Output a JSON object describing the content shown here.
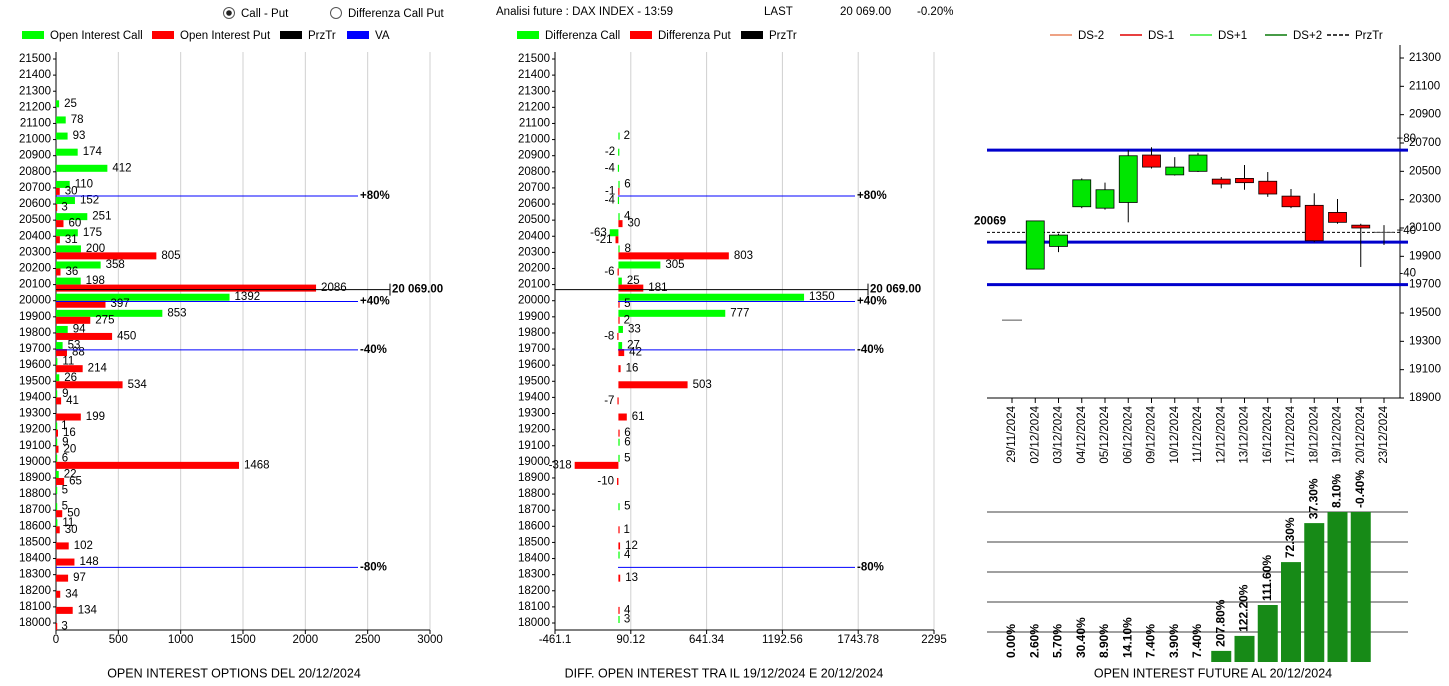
{
  "header": {
    "option_1": "Call - Put",
    "option_2": "Differenza Call Put",
    "info": "Analisi future : DAX INDEX - 13:59",
    "last_label": "LAST",
    "last": "20 069.00",
    "change": "-0.20%"
  },
  "chart_data": [
    {
      "type": "hbar",
      "title": "OPEN INTEREST OPTIONS DEL 20/12/2024",
      "y": [
        18000,
        18100,
        18200,
        18300,
        18400,
        18500,
        18600,
        18700,
        18800,
        18900,
        19000,
        19100,
        19200,
        19300,
        19400,
        19500,
        19600,
        19700,
        19800,
        19900,
        20000,
        20100,
        20200,
        20300,
        20400,
        20500,
        20600,
        20700,
        20800,
        20900,
        21000,
        21100,
        21200,
        21300,
        21400,
        21500
      ],
      "ylim": [
        18000,
        21500
      ],
      "yticks": [
        18000,
        18100,
        18200,
        18300,
        18400,
        18500,
        18600,
        18700,
        18800,
        18900,
        19000,
        19100,
        19200,
        19300,
        19400,
        19500,
        19600,
        19700,
        19800,
        19900,
        20000,
        20100,
        20200,
        20300,
        20400,
        20500,
        20600,
        20700,
        20800,
        20900,
        21000,
        21100,
        21200,
        21300,
        21400,
        21500
      ],
      "xlim": [
        0,
        3000
      ],
      "xticks": [
        0,
        500,
        1000,
        1500,
        2000,
        2500,
        3000
      ],
      "grid": true,
      "series": [
        {
          "name": "Open Interest Call",
          "color": "#00ff00",
          "values": [
            null,
            null,
            null,
            null,
            null,
            null,
            11,
            5,
            5,
            22,
            6,
            9,
            1,
            null,
            9,
            26,
            11,
            53,
            94,
            853,
            1392,
            198,
            358,
            200,
            175,
            251,
            152,
            110,
            412,
            174,
            93,
            78,
            25,
            null,
            null,
            null
          ]
        },
        {
          "name": "Open Interest Put",
          "color": "#ff0000",
          "values": [
            3,
            134,
            34,
            97,
            148,
            102,
            30,
            50,
            null,
            65,
            1468,
            20,
            16,
            199,
            41,
            534,
            214,
            88,
            450,
            275,
            397,
            2086,
            36,
            805,
            31,
            60,
            3,
            30,
            null,
            null,
            null,
            null,
            null,
            null,
            null,
            null
          ]
        }
      ],
      "przTr": {
        "name": "PrzTr",
        "color": "#000000",
        "value": 20069,
        "label": "20 069.00"
      },
      "va": {
        "name": "VA",
        "color": "#0000ff",
        "levels": [
          {
            "value": 20650,
            "label": "+80%"
          },
          {
            "value": 19995,
            "label": "+40%"
          },
          {
            "value": 19695,
            "label": "-40%"
          },
          {
            "value": 18345,
            "label": "-80%"
          }
        ]
      }
    },
    {
      "type": "hbar",
      "title": "DIFF. OPEN INTEREST TRA IL 19/12/2024 E 20/12/2024",
      "y": [
        18000,
        18100,
        18200,
        18300,
        18400,
        18500,
        18600,
        18700,
        18800,
        18900,
        19000,
        19100,
        19200,
        19300,
        19400,
        19500,
        19600,
        19700,
        19800,
        19900,
        20000,
        20100,
        20200,
        20300,
        20400,
        20500,
        20600,
        20700,
        20800,
        20900,
        21000,
        21100,
        21200,
        21300,
        21400,
        21500
      ],
      "ylim": [
        18000,
        21500
      ],
      "yticks": [
        18000,
        18100,
        18200,
        18300,
        18400,
        18500,
        18600,
        18700,
        18800,
        18900,
        19000,
        19100,
        19200,
        19300,
        19400,
        19500,
        19600,
        19700,
        19800,
        19900,
        20000,
        20100,
        20200,
        20300,
        20400,
        20500,
        20600,
        20700,
        20800,
        20900,
        21000,
        21100,
        21200,
        21300,
        21400,
        21500
      ],
      "xlim": [
        -461.1,
        2295
      ],
      "xticks": [
        -461.1,
        90.12,
        641.34,
        1192.56,
        1743.78,
        2295
      ],
      "grid": true,
      "series": [
        {
          "name": "Differenza Call",
          "color": "#00ff00",
          "values": [
            3,
            null,
            null,
            null,
            4,
            null,
            null,
            5,
            null,
            null,
            5,
            6,
            null,
            null,
            null,
            null,
            null,
            27,
            33,
            777,
            1350,
            25,
            305,
            8,
            -63,
            4,
            -4,
            6,
            -4,
            -2,
            2,
            null,
            null,
            null,
            null,
            null
          ]
        },
        {
          "name": "Differenza Put",
          "color": "#ff0000",
          "values": [
            null,
            4,
            null,
            13,
            null,
            12,
            1,
            null,
            null,
            -10,
            -318,
            null,
            6,
            61,
            -7,
            503,
            16,
            42,
            -8,
            2,
            5,
            181,
            -6,
            803,
            -21,
            30,
            null,
            -1,
            null,
            null,
            null,
            null,
            null,
            null,
            null,
            null
          ]
        }
      ],
      "przTr": {
        "name": "PrzTr",
        "color": "#000000",
        "value": 20069,
        "label": "20 069.00"
      },
      "va": {
        "color": "#0000ff",
        "levels": [
          {
            "value": 20650,
            "label": "+80%"
          },
          {
            "value": 19995,
            "label": "+40%"
          },
          {
            "value": 19695,
            "label": "-40%"
          },
          {
            "value": 18345,
            "label": "-80%"
          }
        ]
      }
    },
    {
      "type": "candlestick",
      "categories": [
        "29/11/2024",
        "02/12/2024",
        "03/12/2024",
        "04/12/2024",
        "05/12/2024",
        "06/12/2024",
        "09/12/2024",
        "10/12/2024",
        "11/12/2024",
        "12/12/2024",
        "13/12/2024",
        "16/12/2024",
        "17/12/2024",
        "18/12/2024",
        "19/12/2024",
        "20/12/2024",
        "23/12/2024"
      ],
      "open": [
        19450,
        19810,
        19970,
        20250,
        20240,
        20280,
        20615,
        20475,
        20500,
        20445,
        20450,
        20430,
        20325,
        20260,
        20210,
        20120,
        20069
      ],
      "high": [
        19450,
        20150,
        20060,
        20450,
        20420,
        20650,
        20670,
        20600,
        20630,
        20460,
        20545,
        20495,
        20375,
        20345,
        20305,
        20130,
        20120
      ],
      "low": [
        19450,
        19810,
        19930,
        20240,
        20230,
        20140,
        20520,
        20470,
        20495,
        20380,
        20370,
        20320,
        20240,
        20000,
        20130,
        19825,
        19980
      ],
      "close": [
        19450,
        20150,
        20050,
        20440,
        20370,
        20610,
        20530,
        20530,
        20615,
        20410,
        20420,
        20340,
        20250,
        20010,
        20140,
        20100,
        20069
      ],
      "up_color": "#00e600",
      "down_color": "#ff0000",
      "ylim": [
        18900,
        21300
      ],
      "yticks": [
        18900,
        19100,
        19300,
        19500,
        19700,
        19900,
        20100,
        20300,
        20500,
        20700,
        20900,
        21100,
        21300
      ],
      "axis_side": "right",
      "legend": [
        {
          "name": "DS-2",
          "color": "#e8845c"
        },
        {
          "name": "DS-1",
          "color": "#e00000"
        },
        {
          "name": "DS+1",
          "color": "#33ee33"
        },
        {
          "name": "DS+2",
          "color": "#0a7a0a"
        },
        {
          "name": "PrzTr",
          "color": "#000000",
          "dashed": true
        }
      ],
      "przTr": {
        "value": 20069,
        "label": "20069"
      },
      "level_color": "#0000cc",
      "levels": [
        {
          "value": 20650,
          "label": "+80"
        },
        {
          "value": 20000,
          "label": "+40"
        },
        {
          "value": 19700,
          "label": "-40"
        }
      ]
    },
    {
      "type": "bar",
      "title": "OPEN INTEREST FUTURE AL 20/12/2024",
      "values": [
        0,
        0,
        0,
        0,
        0,
        0,
        0,
        0,
        0,
        0.37,
        0.87,
        1.9,
        3.33,
        4.63,
        5,
        5
      ],
      "change_labels": [
        "0.00%",
        "2.60%",
        "5.70%",
        "30.40%",
        "8.90%",
        "14.10%",
        "7.40%",
        "3.90%",
        "7.40%",
        "207.80%",
        "122.20%",
        "111.60%",
        "72.30%",
        "37.30%",
        "8.10%",
        "-0.40%"
      ],
      "color": "#178a17",
      "ylim": [
        0,
        5
      ],
      "yticks": [
        1,
        2,
        3,
        4,
        5
      ],
      "grid": true
    }
  ]
}
